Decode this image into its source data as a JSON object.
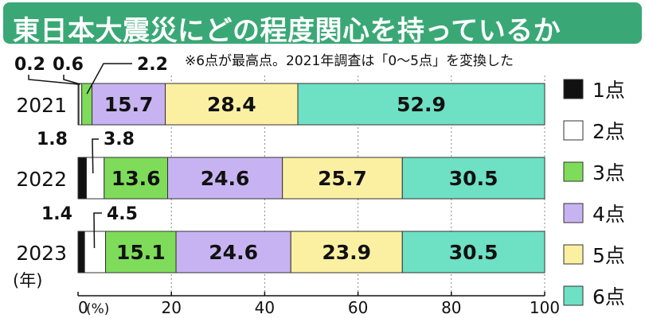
{
  "title": "東日本大震災にどの程度関心を持っているか",
  "note": "※6点が最高点。2021年調査は「0～5点」を変換した",
  "colors": {
    "title_bg": "#3aa876",
    "segments": [
      "#111111",
      "#ffffff",
      "#7fdc5a",
      "#c8b3f2",
      "#fbf0a2",
      "#6ee0c4"
    ]
  },
  "chart_data": {
    "type": "bar",
    "orientation": "horizontal",
    "stacked": true,
    "categories": [
      "2021",
      "2022",
      "2023"
    ],
    "category_unit_label": "(年)",
    "series": [
      {
        "name": "1点",
        "values": [
          0.2,
          1.8,
          1.4
        ]
      },
      {
        "name": "2点",
        "values": [
          0.6,
          3.8,
          4.5
        ]
      },
      {
        "name": "3点",
        "values": [
          2.2,
          13.6,
          15.1
        ]
      },
      {
        "name": "4点",
        "values": [
          15.7,
          24.6,
          24.6
        ]
      },
      {
        "name": "5点",
        "values": [
          28.4,
          25.7,
          23.9
        ]
      },
      {
        "name": "6点",
        "values": [
          52.9,
          30.5,
          30.5
        ]
      }
    ],
    "value_labels": [
      [
        "0.2",
        "0.6",
        "2.2",
        "15.7",
        "28.4",
        "52.9"
      ],
      [
        "1.8",
        "3.8",
        "13.6",
        "24.6",
        "25.7",
        "30.5"
      ],
      [
        "1.4",
        "4.5",
        "15.1",
        "24.6",
        "23.9",
        "30.5"
      ]
    ],
    "xlim": [
      0,
      100
    ],
    "xticks": [
      "0",
      "20",
      "40",
      "60",
      "80",
      "100"
    ],
    "x_unit_label": "(%)",
    "legend_position": "right"
  }
}
